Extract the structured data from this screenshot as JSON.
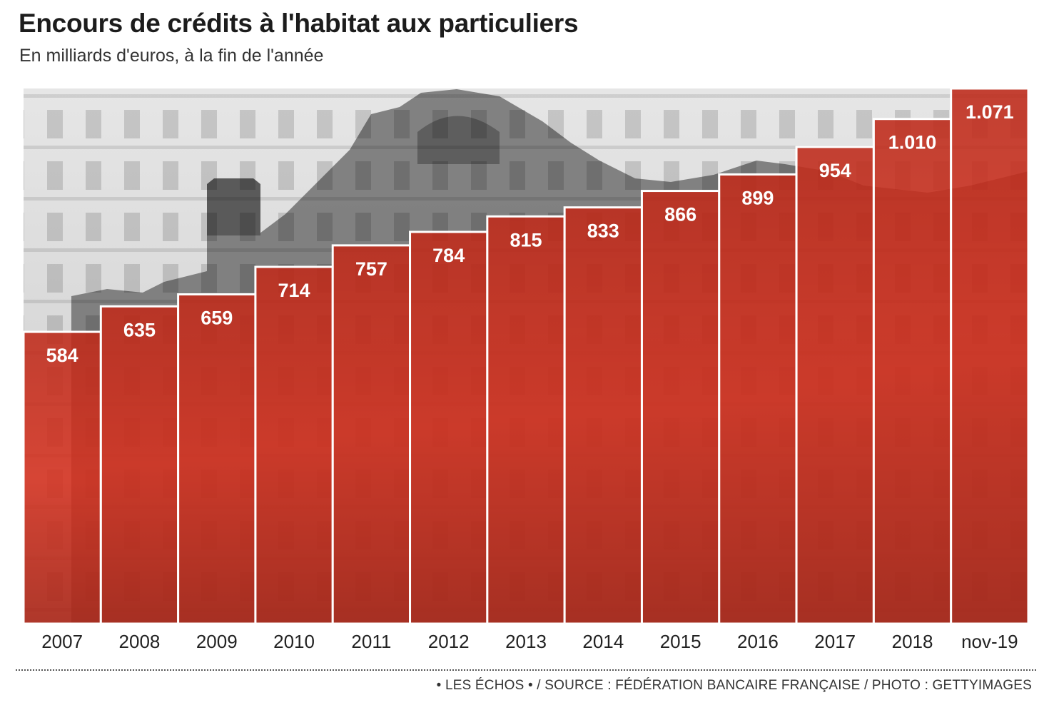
{
  "header": {
    "title": "Encours de crédits à l'habitat aux particuliers",
    "subtitle": "En milliards d'euros, à la fin de l'année"
  },
  "footer": {
    "source": "• LES ÉCHOS • / SOURCE : FÉDÉRATION BANCAIRE FRANÇAISE / PHOTO : GETTYIMAGES"
  },
  "colors": {
    "bar": "#d6311f",
    "bar_dark": "#a81f14",
    "sky": "#d8d8d8",
    "building": "#6e6e6e"
  },
  "chart_data": {
    "type": "bar",
    "categories": [
      "2007",
      "2008",
      "2009",
      "2010",
      "2011",
      "2012",
      "2013",
      "2014",
      "2015",
      "2016",
      "2017",
      "2018",
      "nov-19"
    ],
    "values": [
      584,
      635,
      659,
      714,
      757,
      784,
      815,
      833,
      866,
      899,
      954,
      1010,
      1071
    ],
    "value_labels": [
      "584",
      "635",
      "659",
      "714",
      "757",
      "784",
      "815",
      "833",
      "866",
      "899",
      "954",
      "1.010",
      "1.071"
    ],
    "title": "Encours de crédits à l'habitat aux particuliers",
    "subtitle": "En milliards d'euros, à la fin de l'année",
    "xlabel": "",
    "ylabel": "",
    "ylim": [
      0,
      1071
    ],
    "grid": false,
    "legend": "none"
  }
}
